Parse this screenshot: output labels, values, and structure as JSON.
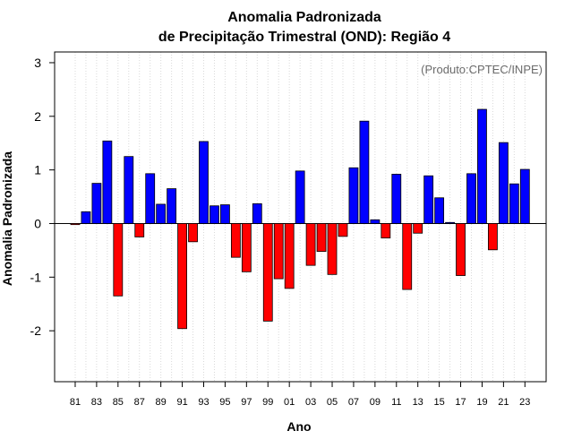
{
  "chart_data": {
    "type": "bar",
    "title": [
      "Anomalia Padronizada",
      "de Precipitação Trimestral (OND): Região 4"
    ],
    "xlabel": "Ano",
    "ylabel": "Anomalia Padronizada",
    "annotation": "(Produto:CPTEC/INPE)",
    "ylim": [
      -2.95,
      3.2
    ],
    "yticks": [
      -2,
      -1,
      0,
      1,
      2,
      3
    ],
    "ytick_labels": [
      "-2",
      "-1",
      "0",
      "1",
      "2",
      "3"
    ],
    "grid": "vertical dotted",
    "positive_color": "#0000ff",
    "negative_color": "#ff0000",
    "categories": [
      "81",
      "82",
      "83",
      "84",
      "85",
      "86",
      "87",
      "88",
      "89",
      "90",
      "91",
      "92",
      "93",
      "94",
      "95",
      "96",
      "97",
      "98",
      "99",
      "00",
      "01",
      "02",
      "03",
      "04",
      "05",
      "06",
      "07",
      "08",
      "09",
      "10",
      "11",
      "12",
      "13",
      "14",
      "15",
      "16",
      "17",
      "18",
      "19",
      "20",
      "21",
      "22",
      "23"
    ],
    "xtick_labels": [
      "81",
      "83",
      "85",
      "87",
      "89",
      "91",
      "93",
      "95",
      "97",
      "99",
      "01",
      "03",
      "05",
      "07",
      "09",
      "11",
      "13",
      "15",
      "17",
      "19",
      "21",
      "23"
    ],
    "values": [
      -0.02,
      0.22,
      0.75,
      1.54,
      -1.35,
      1.25,
      -0.25,
      0.93,
      0.36,
      0.65,
      -1.96,
      -0.34,
      1.53,
      0.33,
      0.35,
      -0.63,
      -0.9,
      0.37,
      -1.82,
      -1.03,
      -1.21,
      0.98,
      -0.78,
      -0.52,
      -0.95,
      -0.24,
      1.04,
      1.91,
      0.07,
      -0.27,
      0.92,
      -1.23,
      -0.18,
      0.89,
      0.48,
      0.02,
      -0.97,
      0.93,
      2.13,
      -0.49,
      1.51,
      0.74,
      1.01
    ]
  }
}
